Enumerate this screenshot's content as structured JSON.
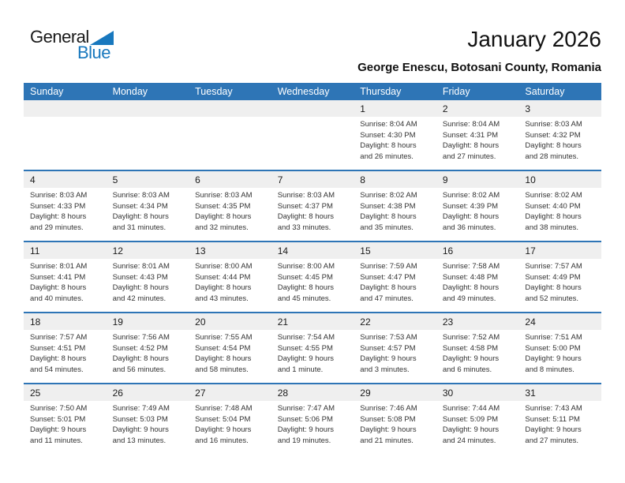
{
  "logo": {
    "text_black": "General",
    "text_blue": "Blue"
  },
  "title": "January 2026",
  "location": "George Enescu, Botosani County, Romania",
  "colors": {
    "header_bg": "#2E75B6",
    "divider": "#2E75B6",
    "band_bg": "#EFEFEF",
    "brand_blue": "#1878BE"
  },
  "calendar": {
    "weekdays": [
      "Sunday",
      "Monday",
      "Tuesday",
      "Wednesday",
      "Thursday",
      "Friday",
      "Saturday"
    ],
    "weeks": [
      [
        null,
        null,
        null,
        null,
        {
          "day": "1",
          "lines": [
            "Sunrise: 8:04 AM",
            "Sunset: 4:30 PM",
            "Daylight: 8 hours",
            "and 26 minutes."
          ]
        },
        {
          "day": "2",
          "lines": [
            "Sunrise: 8:04 AM",
            "Sunset: 4:31 PM",
            "Daylight: 8 hours",
            "and 27 minutes."
          ]
        },
        {
          "day": "3",
          "lines": [
            "Sunrise: 8:03 AM",
            "Sunset: 4:32 PM",
            "Daylight: 8 hours",
            "and 28 minutes."
          ]
        }
      ],
      [
        {
          "day": "4",
          "lines": [
            "Sunrise: 8:03 AM",
            "Sunset: 4:33 PM",
            "Daylight: 8 hours",
            "and 29 minutes."
          ]
        },
        {
          "day": "5",
          "lines": [
            "Sunrise: 8:03 AM",
            "Sunset: 4:34 PM",
            "Daylight: 8 hours",
            "and 31 minutes."
          ]
        },
        {
          "day": "6",
          "lines": [
            "Sunrise: 8:03 AM",
            "Sunset: 4:35 PM",
            "Daylight: 8 hours",
            "and 32 minutes."
          ]
        },
        {
          "day": "7",
          "lines": [
            "Sunrise: 8:03 AM",
            "Sunset: 4:37 PM",
            "Daylight: 8 hours",
            "and 33 minutes."
          ]
        },
        {
          "day": "8",
          "lines": [
            "Sunrise: 8:02 AM",
            "Sunset: 4:38 PM",
            "Daylight: 8 hours",
            "and 35 minutes."
          ]
        },
        {
          "day": "9",
          "lines": [
            "Sunrise: 8:02 AM",
            "Sunset: 4:39 PM",
            "Daylight: 8 hours",
            "and 36 minutes."
          ]
        },
        {
          "day": "10",
          "lines": [
            "Sunrise: 8:02 AM",
            "Sunset: 4:40 PM",
            "Daylight: 8 hours",
            "and 38 minutes."
          ]
        }
      ],
      [
        {
          "day": "11",
          "lines": [
            "Sunrise: 8:01 AM",
            "Sunset: 4:41 PM",
            "Daylight: 8 hours",
            "and 40 minutes."
          ]
        },
        {
          "day": "12",
          "lines": [
            "Sunrise: 8:01 AM",
            "Sunset: 4:43 PM",
            "Daylight: 8 hours",
            "and 42 minutes."
          ]
        },
        {
          "day": "13",
          "lines": [
            "Sunrise: 8:00 AM",
            "Sunset: 4:44 PM",
            "Daylight: 8 hours",
            "and 43 minutes."
          ]
        },
        {
          "day": "14",
          "lines": [
            "Sunrise: 8:00 AM",
            "Sunset: 4:45 PM",
            "Daylight: 8 hours",
            "and 45 minutes."
          ]
        },
        {
          "day": "15",
          "lines": [
            "Sunrise: 7:59 AM",
            "Sunset: 4:47 PM",
            "Daylight: 8 hours",
            "and 47 minutes."
          ]
        },
        {
          "day": "16",
          "lines": [
            "Sunrise: 7:58 AM",
            "Sunset: 4:48 PM",
            "Daylight: 8 hours",
            "and 49 minutes."
          ]
        },
        {
          "day": "17",
          "lines": [
            "Sunrise: 7:57 AM",
            "Sunset: 4:49 PM",
            "Daylight: 8 hours",
            "and 52 minutes."
          ]
        }
      ],
      [
        {
          "day": "18",
          "lines": [
            "Sunrise: 7:57 AM",
            "Sunset: 4:51 PM",
            "Daylight: 8 hours",
            "and 54 minutes."
          ]
        },
        {
          "day": "19",
          "lines": [
            "Sunrise: 7:56 AM",
            "Sunset: 4:52 PM",
            "Daylight: 8 hours",
            "and 56 minutes."
          ]
        },
        {
          "day": "20",
          "lines": [
            "Sunrise: 7:55 AM",
            "Sunset: 4:54 PM",
            "Daylight: 8 hours",
            "and 58 minutes."
          ]
        },
        {
          "day": "21",
          "lines": [
            "Sunrise: 7:54 AM",
            "Sunset: 4:55 PM",
            "Daylight: 9 hours",
            "and 1 minute."
          ]
        },
        {
          "day": "22",
          "lines": [
            "Sunrise: 7:53 AM",
            "Sunset: 4:57 PM",
            "Daylight: 9 hours",
            "and 3 minutes."
          ]
        },
        {
          "day": "23",
          "lines": [
            "Sunrise: 7:52 AM",
            "Sunset: 4:58 PM",
            "Daylight: 9 hours",
            "and 6 minutes."
          ]
        },
        {
          "day": "24",
          "lines": [
            "Sunrise: 7:51 AM",
            "Sunset: 5:00 PM",
            "Daylight: 9 hours",
            "and 8 minutes."
          ]
        }
      ],
      [
        {
          "day": "25",
          "lines": [
            "Sunrise: 7:50 AM",
            "Sunset: 5:01 PM",
            "Daylight: 9 hours",
            "and 11 minutes."
          ]
        },
        {
          "day": "26",
          "lines": [
            "Sunrise: 7:49 AM",
            "Sunset: 5:03 PM",
            "Daylight: 9 hours",
            "and 13 minutes."
          ]
        },
        {
          "day": "27",
          "lines": [
            "Sunrise: 7:48 AM",
            "Sunset: 5:04 PM",
            "Daylight: 9 hours",
            "and 16 minutes."
          ]
        },
        {
          "day": "28",
          "lines": [
            "Sunrise: 7:47 AM",
            "Sunset: 5:06 PM",
            "Daylight: 9 hours",
            "and 19 minutes."
          ]
        },
        {
          "day": "29",
          "lines": [
            "Sunrise: 7:46 AM",
            "Sunset: 5:08 PM",
            "Daylight: 9 hours",
            "and 21 minutes."
          ]
        },
        {
          "day": "30",
          "lines": [
            "Sunrise: 7:44 AM",
            "Sunset: 5:09 PM",
            "Daylight: 9 hours",
            "and 24 minutes."
          ]
        },
        {
          "day": "31",
          "lines": [
            "Sunrise: 7:43 AM",
            "Sunset: 5:11 PM",
            "Daylight: 9 hours",
            "and 27 minutes."
          ]
        }
      ]
    ]
  }
}
